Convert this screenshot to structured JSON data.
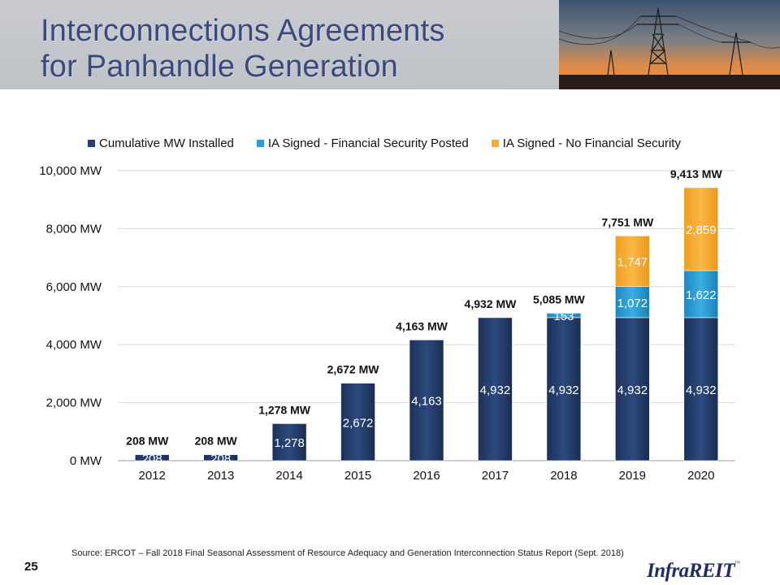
{
  "header": {
    "title_line1": "Interconnections Agreements",
    "title_line2": "for Panhandle Generation"
  },
  "colors": {
    "installed": "#263f6b",
    "financial": "#2e9bd1",
    "no_financial": "#f6ad32",
    "title": "#3a4a7e"
  },
  "chart_data": {
    "type": "bar",
    "stacked": true,
    "categories": [
      "2012",
      "2013",
      "2014",
      "2015",
      "2016",
      "2017",
      "2018",
      "2019",
      "2020"
    ],
    "series": [
      {
        "name": "Cumulative MW Installed",
        "values": [
          208,
          208,
          1278,
          2672,
          4163,
          4932,
          4932,
          4932,
          4932
        ],
        "labels": [
          "208",
          "208",
          "1,278",
          "2,672",
          "4,163",
          "4,932",
          "4,932",
          "4,932",
          "4,932"
        ]
      },
      {
        "name": "IA Signed - Financial Security Posted",
        "values": [
          0,
          0,
          0,
          0,
          0,
          0,
          153,
          1072,
          1622
        ],
        "labels": [
          "",
          "",
          "",
          "",
          "",
          "",
          "153",
          "1,072",
          "1,622"
        ]
      },
      {
        "name": "IA Signed - No Financial Security",
        "values": [
          0,
          0,
          0,
          0,
          0,
          0,
          0,
          1747,
          2859
        ],
        "labels": [
          "",
          "",
          "",
          "",
          "",
          "",
          "",
          "1,747",
          "2,859"
        ]
      }
    ],
    "totals": [
      "208 MW",
      "208 MW",
      "1,278 MW",
      "2,672 MW",
      "4,163 MW",
      "4,932 MW",
      "5,085 MW",
      "7,751 MW",
      "9,413 MW"
    ],
    "ylim": [
      0,
      10000
    ],
    "yticks": [
      "0 MW",
      "2,000 MW",
      "4,000 MW",
      "6,000 MW",
      "8,000 MW",
      "10,000 MW"
    ],
    "ytick_values": [
      0,
      2000,
      4000,
      6000,
      8000,
      10000
    ],
    "grid": true,
    "legend_position": "top"
  },
  "footer": {
    "source": "Source: ERCOT – Fall 2018 Final Seasonal Assessment of Resource Adequacy and Generation Interconnection Status Report (Sept. 2018)",
    "page_number": "25",
    "logo_text": "InfraREIT",
    "logo_tm": "™"
  }
}
